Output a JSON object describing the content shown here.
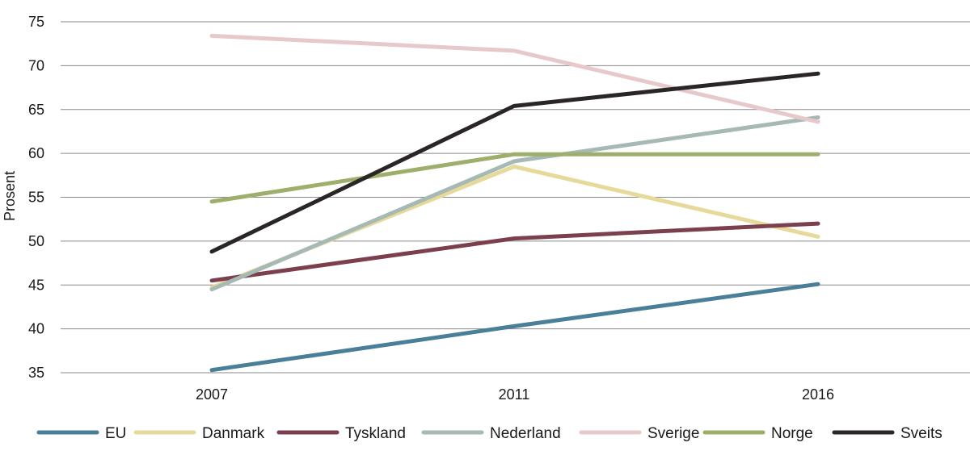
{
  "chart_data": {
    "type": "line",
    "title": "",
    "xlabel": "",
    "ylabel": "Prosent",
    "categories": [
      "2007",
      "2011",
      "2016"
    ],
    "ylim": [
      35,
      75
    ],
    "yticks": [
      35,
      40,
      45,
      50,
      55,
      60,
      65,
      70,
      75
    ],
    "grid": "horizontal",
    "legend_position": "bottom",
    "series": [
      {
        "name": "EU",
        "color": "#4a7f98",
        "values": [
          35.3,
          40.3,
          45.1
        ]
      },
      {
        "name": "Danmark",
        "color": "#e6d99a",
        "values": [
          44.7,
          58.5,
          50.5
        ]
      },
      {
        "name": "Tyskland",
        "color": "#7b3f4e",
        "values": [
          45.5,
          50.3,
          52.0
        ]
      },
      {
        "name": "Nederland",
        "color": "#a7b9b5",
        "values": [
          44.5,
          59.1,
          64.1
        ]
      },
      {
        "name": "Sverige",
        "color": "#e8c9c9",
        "values": [
          73.4,
          71.7,
          63.6
        ]
      },
      {
        "name": "Norge",
        "color": "#9eae6b",
        "values": [
          54.5,
          59.9,
          59.9
        ]
      },
      {
        "name": "Sveits",
        "color": "#2b2626",
        "values": [
          48.8,
          65.4,
          69.1
        ]
      }
    ]
  }
}
